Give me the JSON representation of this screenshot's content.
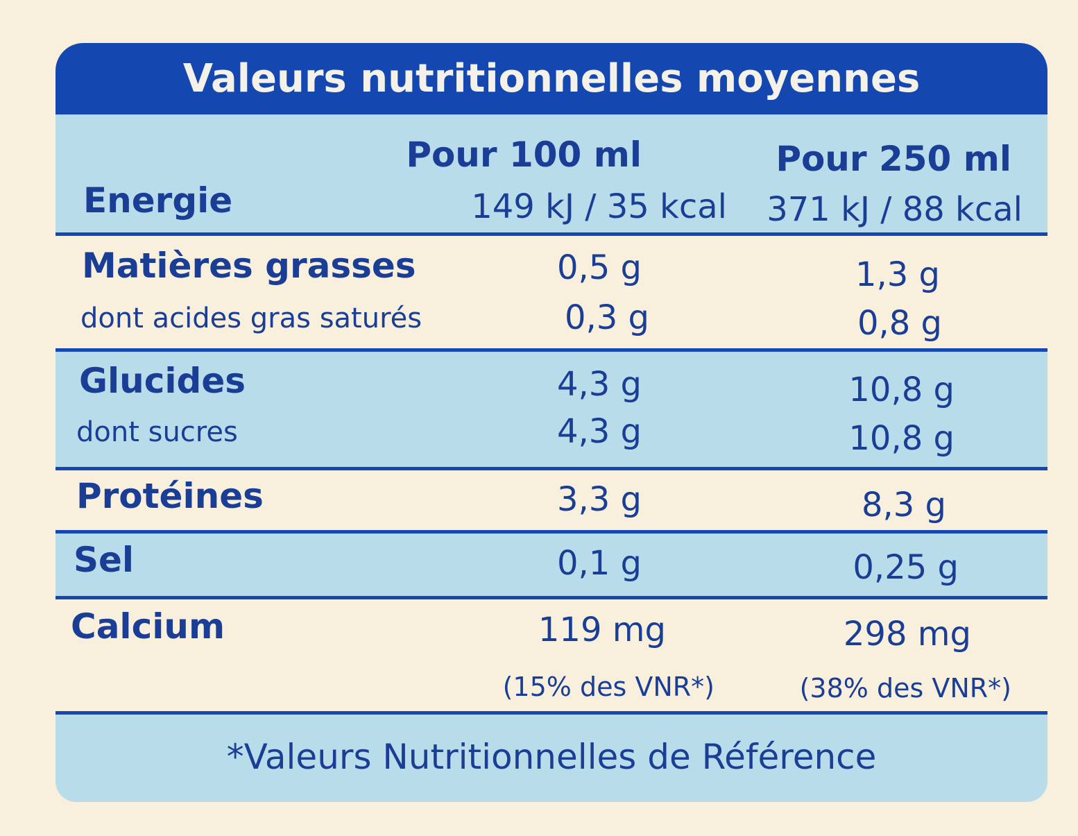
{
  "title": "Valeurs nutritionnelles moyennes",
  "columns": {
    "col1": "Pour 100 ml",
    "col2": "Pour 250 ml"
  },
  "rows": {
    "energie": {
      "label": "Energie",
      "col1": "149 kJ / 35 kcal",
      "col2": "371 kJ / 88 kcal"
    },
    "matieres_grasses": {
      "label": "Matières grasses",
      "col1": "0,5 g",
      "col2": "1,3 g"
    },
    "acides_gras_satures": {
      "label": "dont acides gras saturés",
      "col1": "0,3 g",
      "col2": "0,8 g"
    },
    "glucides": {
      "label": "Glucides",
      "col1": "4,3 g",
      "col2": "10,8 g"
    },
    "sucres": {
      "label": "dont sucres",
      "col1": "4,3 g",
      "col2": "10,8 g"
    },
    "proteines": {
      "label": "Protéines",
      "col1": "3,3 g",
      "col2": "8,3 g"
    },
    "sel": {
      "label": "Sel",
      "col1": "0,1 g",
      "col2": "0,25 g"
    },
    "calcium": {
      "label": "Calcium",
      "col1": "119 mg",
      "col2": "298 mg",
      "col1_vnr": "(15% des VNR*)",
      "col2_vnr": "(38% des VNR*)"
    }
  },
  "footnote": "*Valeurs Nutritionnelles de Référence",
  "colors": {
    "navy": "#1447b0",
    "light_blue": "#b8dcea",
    "cream": "#f8f0dc"
  }
}
